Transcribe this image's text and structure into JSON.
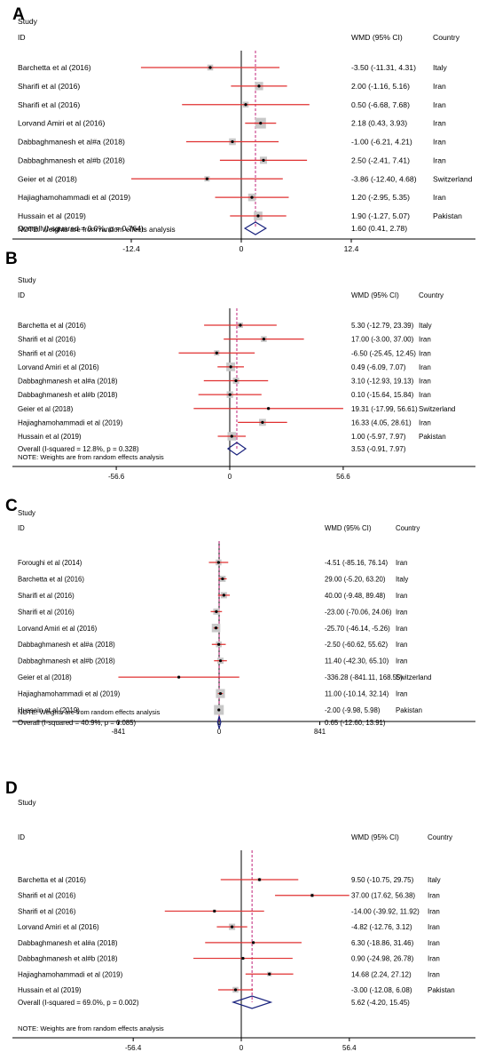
{
  "chart_data": [
    {
      "type": "forest",
      "panel_label": "A",
      "col_study": "Study",
      "col_id": "ID",
      "col_effect": "WMD (95% CI)",
      "col_country": "Country",
      "xlim": [
        -12.4,
        12.4
      ],
      "xticks": [
        -12.4,
        0,
        12.4
      ],
      "xtick_labels": [
        "-12.4",
        "0",
        "12.4"
      ],
      "studies": [
        {
          "name": "Barchetta et al (2016)",
          "est": -3.5,
          "lo": -11.31,
          "hi": 4.31,
          "ci_text": "-3.50 (-11.31, 4.31)",
          "country": "Italy",
          "weight": 0.3
        },
        {
          "name": "Sharifi et al (2016)",
          "est": 2.0,
          "lo": -1.16,
          "hi": 5.16,
          "ci_text": "2.00 (-1.16, 5.16)",
          "country": "Iran",
          "weight": 0.6
        },
        {
          "name": "Sharifi et al (2016)",
          "est": 0.5,
          "lo": -6.68,
          "hi": 7.68,
          "ci_text": "0.50 (-6.68, 7.68)",
          "country": "Iran",
          "weight": 0.3
        },
        {
          "name": "Lorvand Amiri et al (2016)",
          "est": 2.18,
          "lo": 0.43,
          "hi": 3.93,
          "ci_text": "2.18 (0.43, 3.93)",
          "country": "Iran",
          "weight": 1.0
        },
        {
          "name": "Dabbaghmanesh et al#a (2018)",
          "est": -1.0,
          "lo": -6.21,
          "hi": 4.21,
          "ci_text": "-1.00 (-6.21, 4.21)",
          "country": "Iran",
          "weight": 0.4
        },
        {
          "name": "Dabbaghmanesh et al#b (2018)",
          "est": 2.5,
          "lo": -2.41,
          "hi": 7.41,
          "ci_text": "2.50 (-2.41, 7.41)",
          "country": "Iran",
          "weight": 0.45
        },
        {
          "name": "Geier et al (2018)",
          "est": -3.86,
          "lo": -12.4,
          "hi": 4.68,
          "ci_text": "-3.86 (-12.40, 4.68)",
          "country": "Switzerland",
          "weight": 0.25
        },
        {
          "name": "Hajiaghamohammadi et al (2019)",
          "est": 1.2,
          "lo": -2.95,
          "hi": 5.35,
          "ci_text": "1.20 (-2.95, 5.35)",
          "country": "Iran",
          "weight": 0.5
        },
        {
          "name": "Hussain et al (2019)",
          "est": 1.9,
          "lo": -1.27,
          "hi": 5.07,
          "ci_text": "1.90 (-1.27, 5.07)",
          "country": "Pakistan",
          "weight": 0.65
        }
      ],
      "overall": {
        "label": "Overall  (I-squared = 0.0%, p = 0.764)",
        "est": 1.6,
        "lo": 0.41,
        "hi": 2.78,
        "ci_text": "1.60 (0.41, 2.78)"
      },
      "note": "NOTE: Weights are from random effects analysis"
    },
    {
      "type": "forest",
      "panel_label": "B",
      "col_study": "Study",
      "col_id": "ID",
      "col_effect": "WMD (95% CI)",
      "col_country": "Country",
      "xlim": [
        -56.6,
        56.6
      ],
      "xticks": [
        -56.6,
        0,
        56.6
      ],
      "xtick_labels": [
        "-56.6",
        "0",
        "56.6"
      ],
      "studies": [
        {
          "name": "Barchetta et al (2016)",
          "est": 5.3,
          "lo": -12.79,
          "hi": 23.39,
          "ci_text": "5.30 (-12.79, 23.39)",
          "country": "Italy",
          "weight": 0.3
        },
        {
          "name": "Sharifi et al (2016)",
          "est": 17.0,
          "lo": -3.0,
          "hi": 37.0,
          "ci_text": "17.00 (-3.00, 37.00)",
          "country": "Iran",
          "weight": 0.35
        },
        {
          "name": "Sharifi et al (2016)",
          "est": -6.5,
          "lo": -25.45,
          "hi": 12.45,
          "ci_text": "-6.50 (-25.45, 12.45)",
          "country": "Iran",
          "weight": 0.3
        },
        {
          "name": "Lorvand Amiri et al (2016)",
          "est": 0.49,
          "lo": -6.09,
          "hi": 7.07,
          "ci_text": "0.49 (-6.09, 7.07)",
          "country": "Iran",
          "weight": 0.8
        },
        {
          "name": "Dabbaghmanesh et al#a (2018)",
          "est": 3.1,
          "lo": -12.93,
          "hi": 19.13,
          "ci_text": "3.10 (-12.93, 19.13)",
          "country": "Iran",
          "weight": 0.4
        },
        {
          "name": "Dabbaghmanesh et al#b (2018)",
          "est": 0.1,
          "lo": -15.64,
          "hi": 15.84,
          "ci_text": "0.10 (-15.64, 15.84)",
          "country": "Iran",
          "weight": 0.45
        },
        {
          "name": "Geier et al (2018)",
          "est": 19.31,
          "lo": -17.99,
          "hi": 56.61,
          "ci_text": "19.31 (-17.99, 56.61)",
          "country": "Switzerland",
          "weight": 0.1
        },
        {
          "name": "Hajiaghamohammadi et al (2019)",
          "est": 16.33,
          "lo": 4.05,
          "hi": 28.61,
          "ci_text": "16.33 (4.05, 28.61)",
          "country": "Iran",
          "weight": 0.5
        },
        {
          "name": "Hussain et al (2019)",
          "est": 1.0,
          "lo": -5.97,
          "hi": 7.97,
          "ci_text": "1.00 (-5.97, 7.97)",
          "country": "Pakistan",
          "weight": 0.75
        }
      ],
      "overall": {
        "label": "Overall  (I-squared = 12.8%, p = 0.328)",
        "est": 3.53,
        "lo": -0.91,
        "hi": 7.97,
        "ci_text": "3.53 (-0.91, 7.97)"
      },
      "note": "NOTE: Weights are from random effects analysis"
    },
    {
      "type": "forest",
      "panel_label": "C",
      "col_study": "Study",
      "col_id": "ID",
      "col_effect": "WMD (95% CI)",
      "col_country": "Country",
      "xlim": [
        -841,
        841
      ],
      "xticks": [
        -841,
        0,
        841
      ],
      "xtick_labels": [
        "-841",
        "0",
        "841"
      ],
      "studies": [
        {
          "name": "Foroughi et al (2014)",
          "est": -4.51,
          "lo": -85.16,
          "hi": 76.14,
          "ci_text": "-4.51 (-85.16, 76.14)",
          "country": "Iran",
          "weight": 0.35
        },
        {
          "name": "Barchetta et al (2016)",
          "est": 29.0,
          "lo": -5.2,
          "hi": 63.2,
          "ci_text": "29.00 (-5.20, 63.20)",
          "country": "Italy",
          "weight": 0.4
        },
        {
          "name": "Sharifi et al (2016)",
          "est": 40.0,
          "lo": -9.48,
          "hi": 89.48,
          "ci_text": "40.00 (-9.48, 89.48)",
          "country": "Iran",
          "weight": 0.4
        },
        {
          "name": "Sharifi et al (2016)",
          "est": -23.0,
          "lo": -70.06,
          "hi": 24.06,
          "ci_text": "-23.00 (-70.06, 24.06)",
          "country": "Iran",
          "weight": 0.4
        },
        {
          "name": "Lorvand Amiri et al (2016)",
          "est": -25.7,
          "lo": -46.14,
          "hi": -5.26,
          "ci_text": "-25.70 (-46.14, -5.26)",
          "country": "Iran",
          "weight": 0.75
        },
        {
          "name": "Dabbaghmanesh et al#a (2018)",
          "est": -2.5,
          "lo": -60.62,
          "hi": 55.62,
          "ci_text": "-2.50 (-60.62, 55.62)",
          "country": "Iran",
          "weight": 0.35
        },
        {
          "name": "Dabbaghmanesh et al#b (2018)",
          "est": 11.4,
          "lo": -42.3,
          "hi": 65.1,
          "ci_text": "11.40 (-42.30, 65.10)",
          "country": "Iran",
          "weight": 0.4
        },
        {
          "name": "Geier et al (2018)",
          "est": -336.28,
          "lo": -841.11,
          "hi": 168.55,
          "ci_text": "-336.28 (-841.11, 168.55)",
          "country": "Switzerland",
          "weight": 0.02
        },
        {
          "name": "Hajiaghamohammadi et al (2019)",
          "est": 11.0,
          "lo": -10.14,
          "hi": 32.14,
          "ci_text": "11.00 (-10.14, 32.14)",
          "country": "Iran",
          "weight": 0.85
        },
        {
          "name": "Hussain et al (2019)",
          "est": -2.0,
          "lo": -9.98,
          "hi": 5.98,
          "ci_text": "-2.00 (-9.98, 5.98)",
          "country": "Pakistan",
          "weight": 1.0
        }
      ],
      "overall": {
        "label": "Overall  (I-squared = 40.9%, p = 0.085)",
        "est": 0.65,
        "lo": -12.6,
        "hi": 13.91,
        "ci_text": "0.65 (-12.60, 13.91)"
      },
      "note": "NOTE: Weights are from random effects analysis"
    },
    {
      "type": "forest",
      "panel_label": "D",
      "col_study": "Study",
      "col_id": "ID",
      "col_effect": "WMD (95% CI)",
      "col_country": "Country",
      "xlim": [
        -56.4,
        56.4
      ],
      "xticks": [
        -56.4,
        0,
        56.4
      ],
      "xtick_labels": [
        "-56.4",
        "0",
        "56.4"
      ],
      "studies": [
        {
          "name": "Barchetta et al (2016)",
          "est": 9.5,
          "lo": -10.75,
          "hi": 29.75,
          "ci_text": "9.50 (-10.75, 29.75)",
          "country": "Italy",
          "weight": 0.1
        },
        {
          "name": "Sharifi et al (2016)",
          "est": 37.0,
          "lo": 17.62,
          "hi": 56.38,
          "ci_text": "37.00 (17.62, 56.38)",
          "country": "Iran",
          "weight": 0.1
        },
        {
          "name": "Sharifi et al (2016)",
          "est": -14.0,
          "lo": -39.92,
          "hi": 11.92,
          "ci_text": "-14.00 (-39.92, 11.92)",
          "country": "Iran",
          "weight": 0.08
        },
        {
          "name": "Lorvand Amiri et al (2016)",
          "est": -4.82,
          "lo": -12.76,
          "hi": 3.12,
          "ci_text": "-4.82 (-12.76, 3.12)",
          "country": "Iran",
          "weight": 0.3
        },
        {
          "name": "Dabbaghmanesh et al#a (2018)",
          "est": 6.3,
          "lo": -18.86,
          "hi": 31.46,
          "ci_text": "6.30 (-18.86, 31.46)",
          "country": "Iran",
          "weight": 0.05
        },
        {
          "name": "Dabbaghmanesh et al#b (2018)",
          "est": 0.9,
          "lo": -24.98,
          "hi": 26.78,
          "ci_text": "0.90 (-24.98, 26.78)",
          "country": "Iran",
          "weight": 0.05
        },
        {
          "name": "Hajiaghamohammadi et al (2019)",
          "est": 14.68,
          "lo": 2.24,
          "hi": 27.12,
          "ci_text": "14.68 (2.24, 27.12)",
          "country": "Iran",
          "weight": 0.15
        },
        {
          "name": "Hussain et al (2019)",
          "est": -3.0,
          "lo": -12.08,
          "hi": 6.08,
          "ci_text": "-3.00 (-12.08, 6.08)",
          "country": "Pakistan",
          "weight": 0.25
        }
      ],
      "overall": {
        "label": "Overall  (I-squared = 69.0%, p = 0.002)",
        "est": 5.62,
        "lo": -4.2,
        "hi": 15.45,
        "ci_text": "5.62 (-4.20, 15.45)"
      },
      "note": "NOTE: Weights are from random effects analysis"
    }
  ]
}
